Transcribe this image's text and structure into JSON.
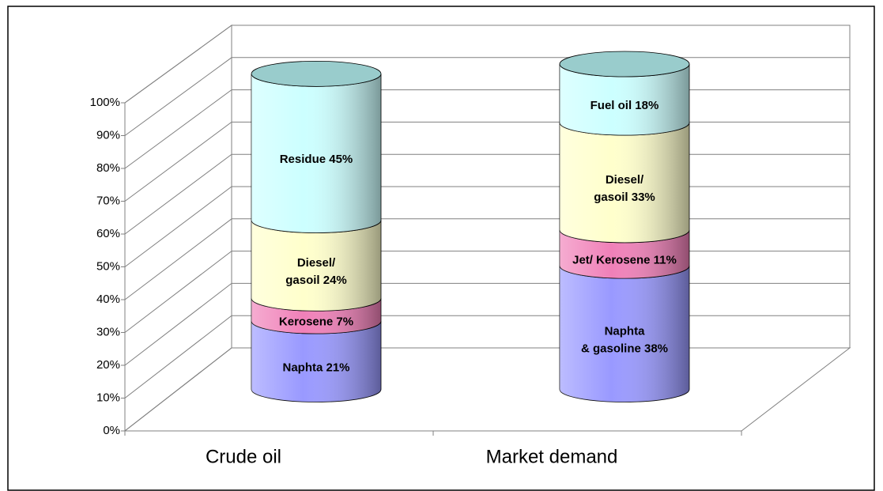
{
  "chart_data": {
    "type": "bar",
    "stacked": true,
    "shape": "cylinder",
    "categories": [
      "Crude oil",
      "Market demand"
    ],
    "series": [
      {
        "color": "#9999ff",
        "values": [
          21,
          38
        ],
        "value_labels": [
          [
            "Naphta 21%"
          ],
          [
            "Naphta",
            "& gasoline 38%"
          ]
        ]
      },
      {
        "color": "#f080b8",
        "values": [
          7,
          11
        ],
        "value_labels": [
          [
            "Kerosene 7%"
          ],
          [
            "Jet/ Kerosene 11%"
          ]
        ]
      },
      {
        "color": "#ffffcc",
        "values": [
          24,
          33
        ],
        "value_labels": [
          [
            "Diesel/",
            "gasoil 24%"
          ],
          [
            "Diesel/",
            "gasoil 33%"
          ]
        ]
      },
      {
        "color": "#ccffff",
        "values": [
          45,
          18
        ],
        "value_labels": [
          [
            "Residue 45%"
          ],
          [
            "Fuel oil 18%"
          ]
        ]
      }
    ],
    "top_color": "#99cccc",
    "ylim": [
      0,
      100
    ],
    "yticks": [
      {
        "value": 0,
        "label": "0%"
      },
      {
        "value": 10,
        "label": "10%"
      },
      {
        "value": 20,
        "label": "20%"
      },
      {
        "value": 30,
        "label": "30%"
      },
      {
        "value": 40,
        "label": "40%"
      },
      {
        "value": 50,
        "label": "50%"
      },
      {
        "value": 60,
        "label": "60%"
      },
      {
        "value": 70,
        "label": "70%"
      },
      {
        "value": 80,
        "label": "80%"
      },
      {
        "value": 90,
        "label": "90%"
      },
      {
        "value": 100,
        "label": "100%"
      }
    ],
    "grid": true
  }
}
